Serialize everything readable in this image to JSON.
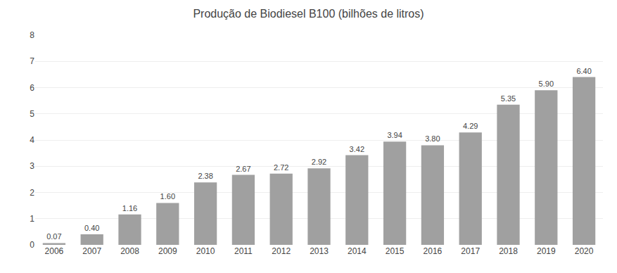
{
  "chart_data": {
    "type": "bar",
    "title": "Produção de Biodiesel B100 (bilhões de litros)",
    "categories": [
      "2006",
      "2007",
      "2008",
      "2009",
      "2010",
      "2011",
      "2012",
      "2013",
      "2014",
      "2015",
      "2016",
      "2017",
      "2018",
      "2019",
      "2020"
    ],
    "values": [
      0.07,
      0.4,
      1.16,
      1.6,
      2.38,
      2.67,
      2.72,
      2.92,
      3.42,
      3.94,
      3.8,
      4.29,
      5.35,
      5.9,
      6.4
    ],
    "value_labels": [
      "0.07",
      "0.40",
      "1.16",
      "1.60",
      "2.38",
      "2.67",
      "2.72",
      "2.92",
      "3.42",
      "3.94",
      "3.80",
      "4.29",
      "5.35",
      "5.90",
      "6.40"
    ],
    "data_labels": true,
    "color": "#a0a0a0",
    "ylim": [
      0,
      8
    ],
    "yticks": [
      0,
      1,
      2,
      3,
      4,
      5,
      6,
      7,
      8
    ],
    "grid": true
  }
}
